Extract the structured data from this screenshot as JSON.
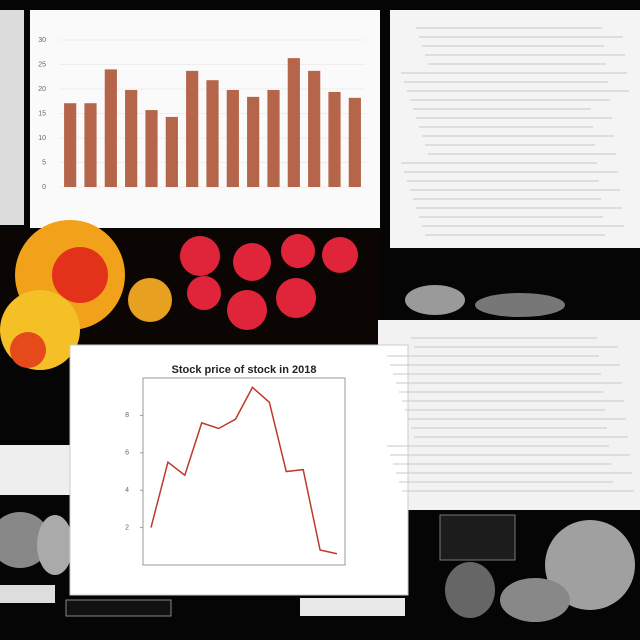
{
  "charts": [
    {
      "type": "bar",
      "color": "#b5654a",
      "categories": [
        null,
        null,
        null,
        null,
        null,
        null,
        null,
        null,
        null,
        null,
        null,
        null,
        null,
        null,
        null
      ],
      "values": [
        17.1,
        17.1,
        24,
        19.8,
        15.7,
        14.3,
        23.7,
        21.8,
        19.8,
        18.4,
        19.8,
        26.3,
        23.7,
        19.4,
        18.2
      ],
      "ylim": [
        0,
        30
      ],
      "yticks": [
        0,
        5,
        10,
        15,
        20,
        25,
        30
      ],
      "grid": true
    },
    {
      "type": "line",
      "title": "Stock price of stock in 2018",
      "color": "#c0392b",
      "categories": [
        null,
        null,
        null,
        null,
        null,
        null,
        null,
        null,
        null,
        null,
        null,
        null
      ],
      "values": [
        2.0,
        5.5,
        4.8,
        7.6,
        7.3,
        7.8,
        9.5,
        8.7,
        5.0,
        5.1,
        0.8,
        0.6
      ],
      "ylim": [
        0,
        10
      ],
      "yticks": [
        2,
        4,
        6,
        8
      ],
      "grid": false
    }
  ]
}
